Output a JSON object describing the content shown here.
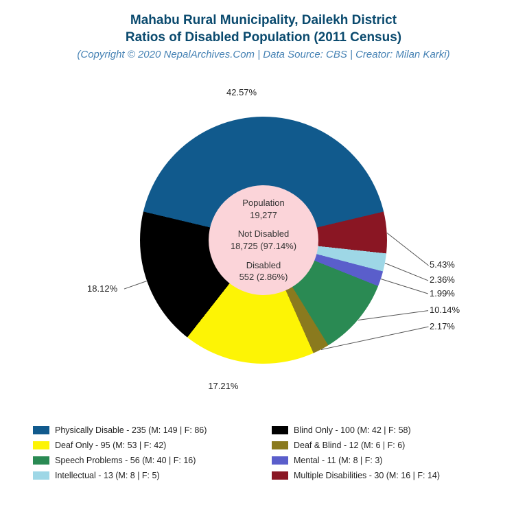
{
  "title_line1": "Mahabu Rural Municipality, Dailekh District",
  "title_line2": "Ratios of Disabled Population (2011 Census)",
  "subtitle": "(Copyright © 2020 NepalArchives.Com | Data Source: CBS | Creator: Milan Karki)",
  "title_color": "#0a4a6e",
  "subtitle_color": "#4682b4",
  "background_color": "#ffffff",
  "chart": {
    "type": "pie",
    "hole_color": "#fbd4d9",
    "hole_text": {
      "pop_label": "Population",
      "pop_value": "19,277",
      "notdis_label": "Not Disabled",
      "notdis_value": "18,725 (97.14%)",
      "dis_label": "Disabled",
      "dis_value": "552 (2.86%)"
    },
    "slices": [
      {
        "name": "Physically Disable",
        "pct": 42.57,
        "pct_label": "42.57%",
        "color": "#115a8d",
        "legend": "Physically Disable - 235 (M: 149 | F: 86)"
      },
      {
        "name": "Multiple Disabilities",
        "pct": 5.43,
        "pct_label": "5.43%",
        "color": "#8a1623",
        "legend": "Multiple Disabilities - 30 (M: 16 | F: 14)"
      },
      {
        "name": "Intellectual",
        "pct": 2.36,
        "pct_label": "2.36%",
        "color": "#9ed7e6",
        "legend": "Intellectual - 13 (M: 8 | F: 5)"
      },
      {
        "name": "Mental",
        "pct": 1.99,
        "pct_label": "1.99%",
        "color": "#5a5ecb",
        "legend": "Mental - 11 (M: 8 | F: 3)"
      },
      {
        "name": "Speech Problems",
        "pct": 10.14,
        "pct_label": "10.14%",
        "color": "#2a8a53",
        "legend": "Speech Problems - 56 (M: 40 | F: 16)"
      },
      {
        "name": "Deaf & Blind",
        "pct": 2.17,
        "pct_label": "2.17%",
        "color": "#8a7a1e",
        "legend": "Deaf & Blind - 12 (M: 6 | F: 6)"
      },
      {
        "name": "Deaf Only",
        "pct": 17.21,
        "pct_label": "17.21%",
        "color": "#fdf405",
        "legend": "Deaf Only - 95 (M: 53 | F: 42)"
      },
      {
        "name": "Blind Only",
        "pct": 18.12,
        "pct_label": "18.12%",
        "color": "#000000",
        "legend": "Blind Only - 100 (M: 42 | F: 58)"
      }
    ],
    "legend_order": [
      0,
      7,
      6,
      5,
      4,
      3,
      2,
      1
    ],
    "label_fontsize": 13,
    "legend_fontsize": 12.5,
    "title_fontsize": 19,
    "subtitle_fontsize": 15
  }
}
